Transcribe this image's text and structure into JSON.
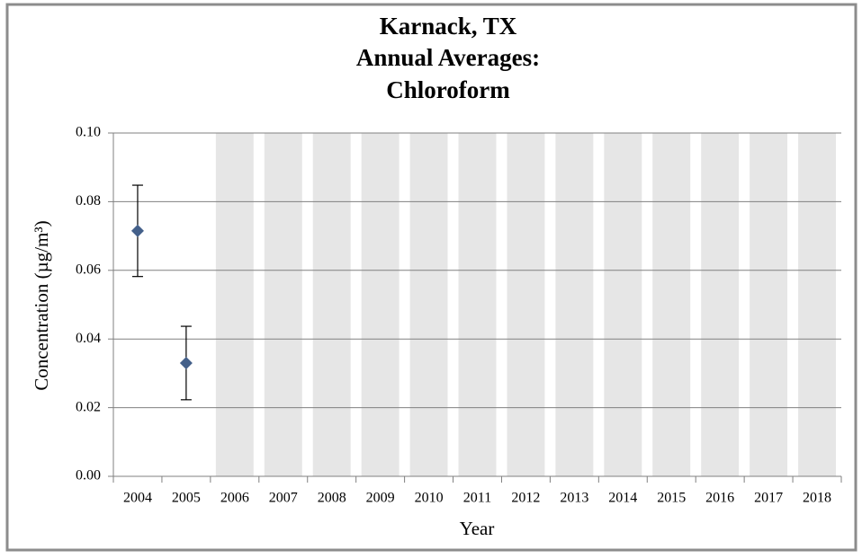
{
  "chart_data": {
    "type": "scatter",
    "title": [
      "Karnack, TX",
      "Annual Averages:",
      "Chloroform"
    ],
    "x_label": "Year",
    "y_label": "Concentration (µg/m³)",
    "categories": [
      "2004",
      "2005",
      "2006",
      "2007",
      "2008",
      "2009",
      "2010",
      "2011",
      "2012",
      "2013",
      "2014",
      "2015",
      "2016",
      "2017",
      "2018"
    ],
    "series": [
      {
        "color": "#44608a",
        "values": [
          0.0715,
          0.033,
          null,
          null,
          null,
          null,
          null,
          null,
          null,
          null,
          null,
          null,
          null,
          null,
          null
        ],
        "errors": [
          0.0133,
          0.0107,
          null,
          null,
          null,
          null,
          null,
          null,
          null,
          null,
          null,
          null,
          null,
          null,
          null
        ]
      }
    ],
    "no_data_color": "#e6e6e6",
    "ylim": [
      0,
      0.1
    ],
    "yticks": [
      {
        "value": 0,
        "label": "0.00"
      },
      {
        "value": 0.02,
        "label": "0.02"
      },
      {
        "value": 0.04,
        "label": "0.04"
      },
      {
        "value": 0.06,
        "label": "0.06"
      },
      {
        "value": 0.08,
        "label": "0.08"
      },
      {
        "value": 0.1,
        "label": "0.10"
      }
    ],
    "grid": true
  }
}
